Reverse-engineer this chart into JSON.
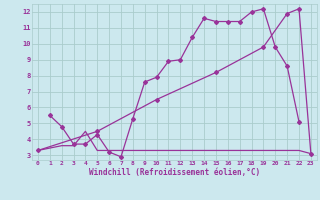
{
  "bg_color": "#cce8ee",
  "grid_color": "#aacccc",
  "line_color": "#993399",
  "xlabel": "Windchill (Refroidissement éolien,°C)",
  "ylim": [
    2.7,
    12.5
  ],
  "xlim": [
    -0.5,
    23.5
  ],
  "yticks": [
    3,
    4,
    5,
    6,
    7,
    8,
    9,
    10,
    11,
    12
  ],
  "xticks": [
    0,
    1,
    2,
    3,
    4,
    5,
    6,
    7,
    8,
    9,
    10,
    11,
    12,
    13,
    14,
    15,
    16,
    17,
    18,
    19,
    20,
    21,
    22,
    23
  ],
  "line1_x": [
    1,
    2,
    3,
    4,
    5,
    6,
    7,
    8,
    9,
    10,
    11,
    12,
    13,
    14,
    15,
    16,
    17,
    18,
    19,
    20,
    21,
    22
  ],
  "line1_y": [
    5.5,
    4.8,
    3.7,
    3.7,
    4.3,
    3.2,
    2.9,
    5.3,
    7.6,
    7.9,
    8.9,
    9.0,
    10.4,
    11.6,
    11.4,
    11.4,
    11.4,
    12.0,
    12.2,
    9.8,
    8.6,
    5.1
  ],
  "line2_x": [
    0,
    2,
    3,
    4,
    5,
    6,
    7,
    8,
    9,
    10,
    11,
    12,
    13,
    14,
    15,
    16,
    17,
    18,
    19,
    20,
    21,
    22,
    23
  ],
  "line2_y": [
    3.3,
    3.6,
    3.6,
    4.5,
    3.3,
    3.3,
    3.3,
    3.3,
    3.3,
    3.3,
    3.3,
    3.3,
    3.3,
    3.3,
    3.3,
    3.3,
    3.3,
    3.3,
    3.3,
    3.3,
    3.3,
    3.3,
    3.1
  ],
  "line3_x": [
    0,
    5,
    10,
    15,
    19,
    21,
    22,
    23
  ],
  "line3_y": [
    3.3,
    4.5,
    6.5,
    8.2,
    9.8,
    11.9,
    12.2,
    3.1
  ]
}
